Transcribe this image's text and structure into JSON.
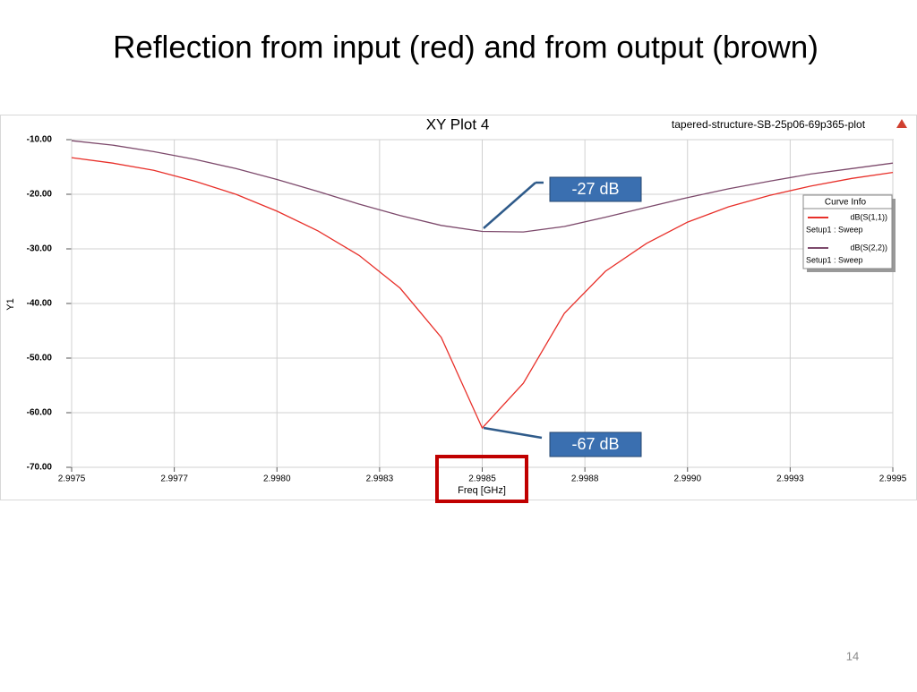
{
  "slide_title": "Reflection from input (red) and from output (brown)",
  "page_number": "14",
  "chart_data": {
    "type": "line",
    "title": "XY Plot 4",
    "subtitle": "tapered-structure-SB-25p06-69p365-plot",
    "x_label": "Freq [GHz]",
    "y_label": "Y1",
    "legend_title": "Curve Info",
    "legend_position": "right",
    "grid": true,
    "x": [
      2.9975,
      2.9976,
      2.9977,
      2.9978,
      2.9979,
      2.998,
      2.9981,
      2.9982,
      2.9983,
      2.9984,
      2.9985,
      2.9986,
      2.9987,
      2.9988,
      2.9989,
      2.999,
      2.9991,
      2.9992,
      2.9993,
      2.9994,
      2.9995
    ],
    "series": [
      {
        "name": "dB(S(1,1))",
        "setup": "Setup1 : Sweep",
        "color": "#e8302a",
        "values": [
          -13.3,
          -14.3,
          -15.6,
          -17.6,
          -20.0,
          -23.1,
          -26.7,
          -31.2,
          -37.2,
          -46.2,
          -62.8,
          -54.6,
          -41.8,
          -34.1,
          -29.0,
          -25.1,
          -22.3,
          -20.2,
          -18.5,
          -17.1,
          -16.0
        ]
      },
      {
        "name": "dB(S(2,2))",
        "setup": "Setup1 : Sweep",
        "color": "#7d4a6c",
        "values": [
          -10.2,
          -11.0,
          -12.2,
          -13.6,
          -15.3,
          -17.3,
          -19.5,
          -21.8,
          -23.9,
          -25.7,
          -26.8,
          -26.9,
          -25.9,
          -24.2,
          -22.4,
          -20.6,
          -19.0,
          -17.6,
          -16.3,
          -15.3,
          -14.3
        ]
      }
    ],
    "annotations": [
      "-27 dB",
      "-67 dB"
    ],
    "xlim": [
      2.9975,
      2.9995
    ],
    "xticks": [
      2.9975,
      {
        "value": 2.99775,
        "label": "2.9977"
      },
      {
        "value": 2.998,
        "label": "2.9980"
      },
      {
        "value": 2.99825,
        "label": "2.9983"
      },
      2.9985,
      {
        "value": 2.99875,
        "label": "2.9988"
      },
      {
        "value": 2.999,
        "label": "2.9990"
      },
      {
        "value": 2.99925,
        "label": "2.9993"
      },
      2.9995
    ],
    "ylim": [
      -70,
      -10
    ],
    "yticks": [
      {
        "value": -10,
        "label": "-10.00"
      },
      {
        "value": -20,
        "label": "-20.00"
      },
      {
        "value": -30,
        "label": "-30.00"
      },
      {
        "value": -40,
        "label": "-40.00"
      },
      {
        "value": -50,
        "label": "-50.00"
      },
      {
        "value": -60,
        "label": "-60.00"
      },
      {
        "value": -70,
        "label": "-70.00"
      }
    ]
  }
}
